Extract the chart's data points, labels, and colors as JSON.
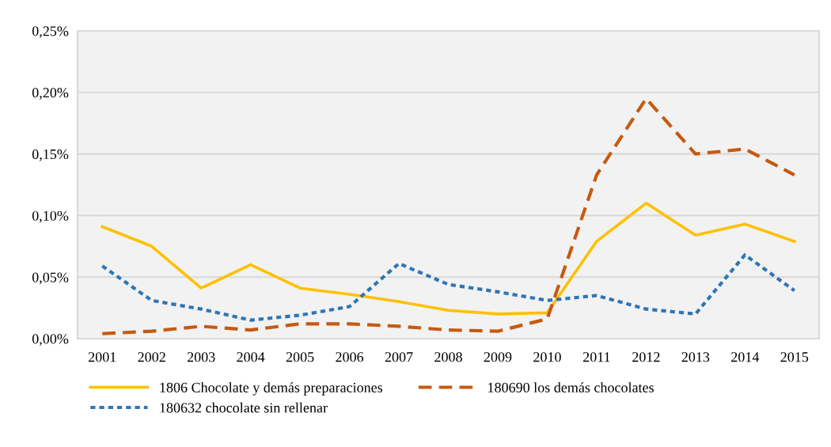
{
  "chart_data": {
    "type": "line",
    "categories": [
      "2001",
      "2002",
      "2003",
      "2004",
      "2005",
      "2006",
      "2007",
      "2008",
      "2009",
      "2010",
      "2011",
      "2012",
      "2013",
      "2014",
      "2015"
    ],
    "series": [
      {
        "name": "1806 Chocolate y demás preparaciones",
        "color": "#ffc000",
        "line_style": "solid",
        "values": [
          0.091,
          0.075,
          0.041,
          0.06,
          0.041,
          0.036,
          0.03,
          0.023,
          0.02,
          0.021,
          0.079,
          0.11,
          0.084,
          0.093,
          0.079
        ]
      },
      {
        "name": "180632 chocolate sin rellenar",
        "color": "#2e75b6",
        "line_style": "dotted",
        "values": [
          0.059,
          0.031,
          0.024,
          0.015,
          0.019,
          0.026,
          0.061,
          0.044,
          0.038,
          0.031,
          0.035,
          0.024,
          0.02,
          0.068,
          0.039
        ]
      },
      {
        "name": "180690 los demás chocolates",
        "color": "#c55a11",
        "line_style": "dashed",
        "values": [
          0.004,
          0.006,
          0.01,
          0.007,
          0.012,
          0.012,
          0.01,
          0.007,
          0.006,
          0.016,
          0.133,
          0.195,
          0.15,
          0.154,
          0.133
        ]
      }
    ],
    "ylim": [
      0,
      0.25
    ],
    "yticks": [
      {
        "value": 0,
        "label": "0,00%"
      },
      {
        "value": 0.05,
        "label": "0,05%"
      },
      {
        "value": 0.1,
        "label": "0,10%"
      },
      {
        "value": 0.15,
        "label": "0,15%"
      },
      {
        "value": 0.2,
        "label": "0,20%"
      },
      {
        "value": 0.25,
        "label": "0,25%"
      }
    ],
    "grid": "y",
    "legend": "bottom",
    "marker": "none"
  }
}
